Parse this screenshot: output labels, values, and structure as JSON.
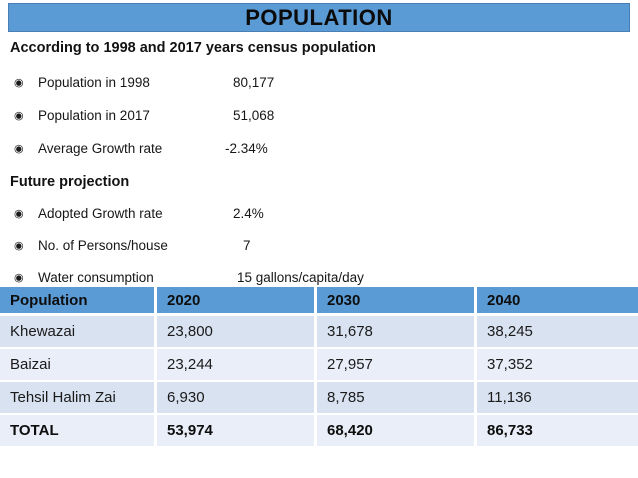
{
  "slide_title": "POPULATION",
  "bullet_icon": "◉",
  "census": {
    "heading": "According to 1998 and 2017 years census population",
    "items": [
      {
        "label": "Population in 1998",
        "value": "80,177"
      },
      {
        "label": "Population in 2017",
        "value": "51,068"
      },
      {
        "label": "Average Growth rate",
        "value": "-2.34%"
      }
    ]
  },
  "projection": {
    "heading": "Future projection",
    "items": [
      {
        "label": "Adopted Growth rate",
        "value": "2.4%"
      },
      {
        "label": "No. of Persons/house",
        "value": "7"
      },
      {
        "label": "Water consumption",
        "value": "15 gallons/capita/day"
      }
    ]
  },
  "table": {
    "columns": [
      "Population",
      "2020",
      "2030",
      "2040"
    ],
    "rows": [
      [
        "Khewazai",
        "23,800",
        "31,678",
        "38,245"
      ],
      [
        "Baizai",
        "23,244",
        "27,957",
        "37,352"
      ],
      [
        "Tehsil Halim Zai",
        "6,930",
        "8,785",
        "11,136"
      ],
      [
        "TOTAL",
        "53,974",
        "68,420",
        "86,733"
      ]
    ]
  },
  "colors": {
    "accent_blue": "#5b9bd5",
    "title_border": "#4a7fb5",
    "row_band_dark": "#d9e2f1",
    "row_band_light": "#eaeef8"
  }
}
